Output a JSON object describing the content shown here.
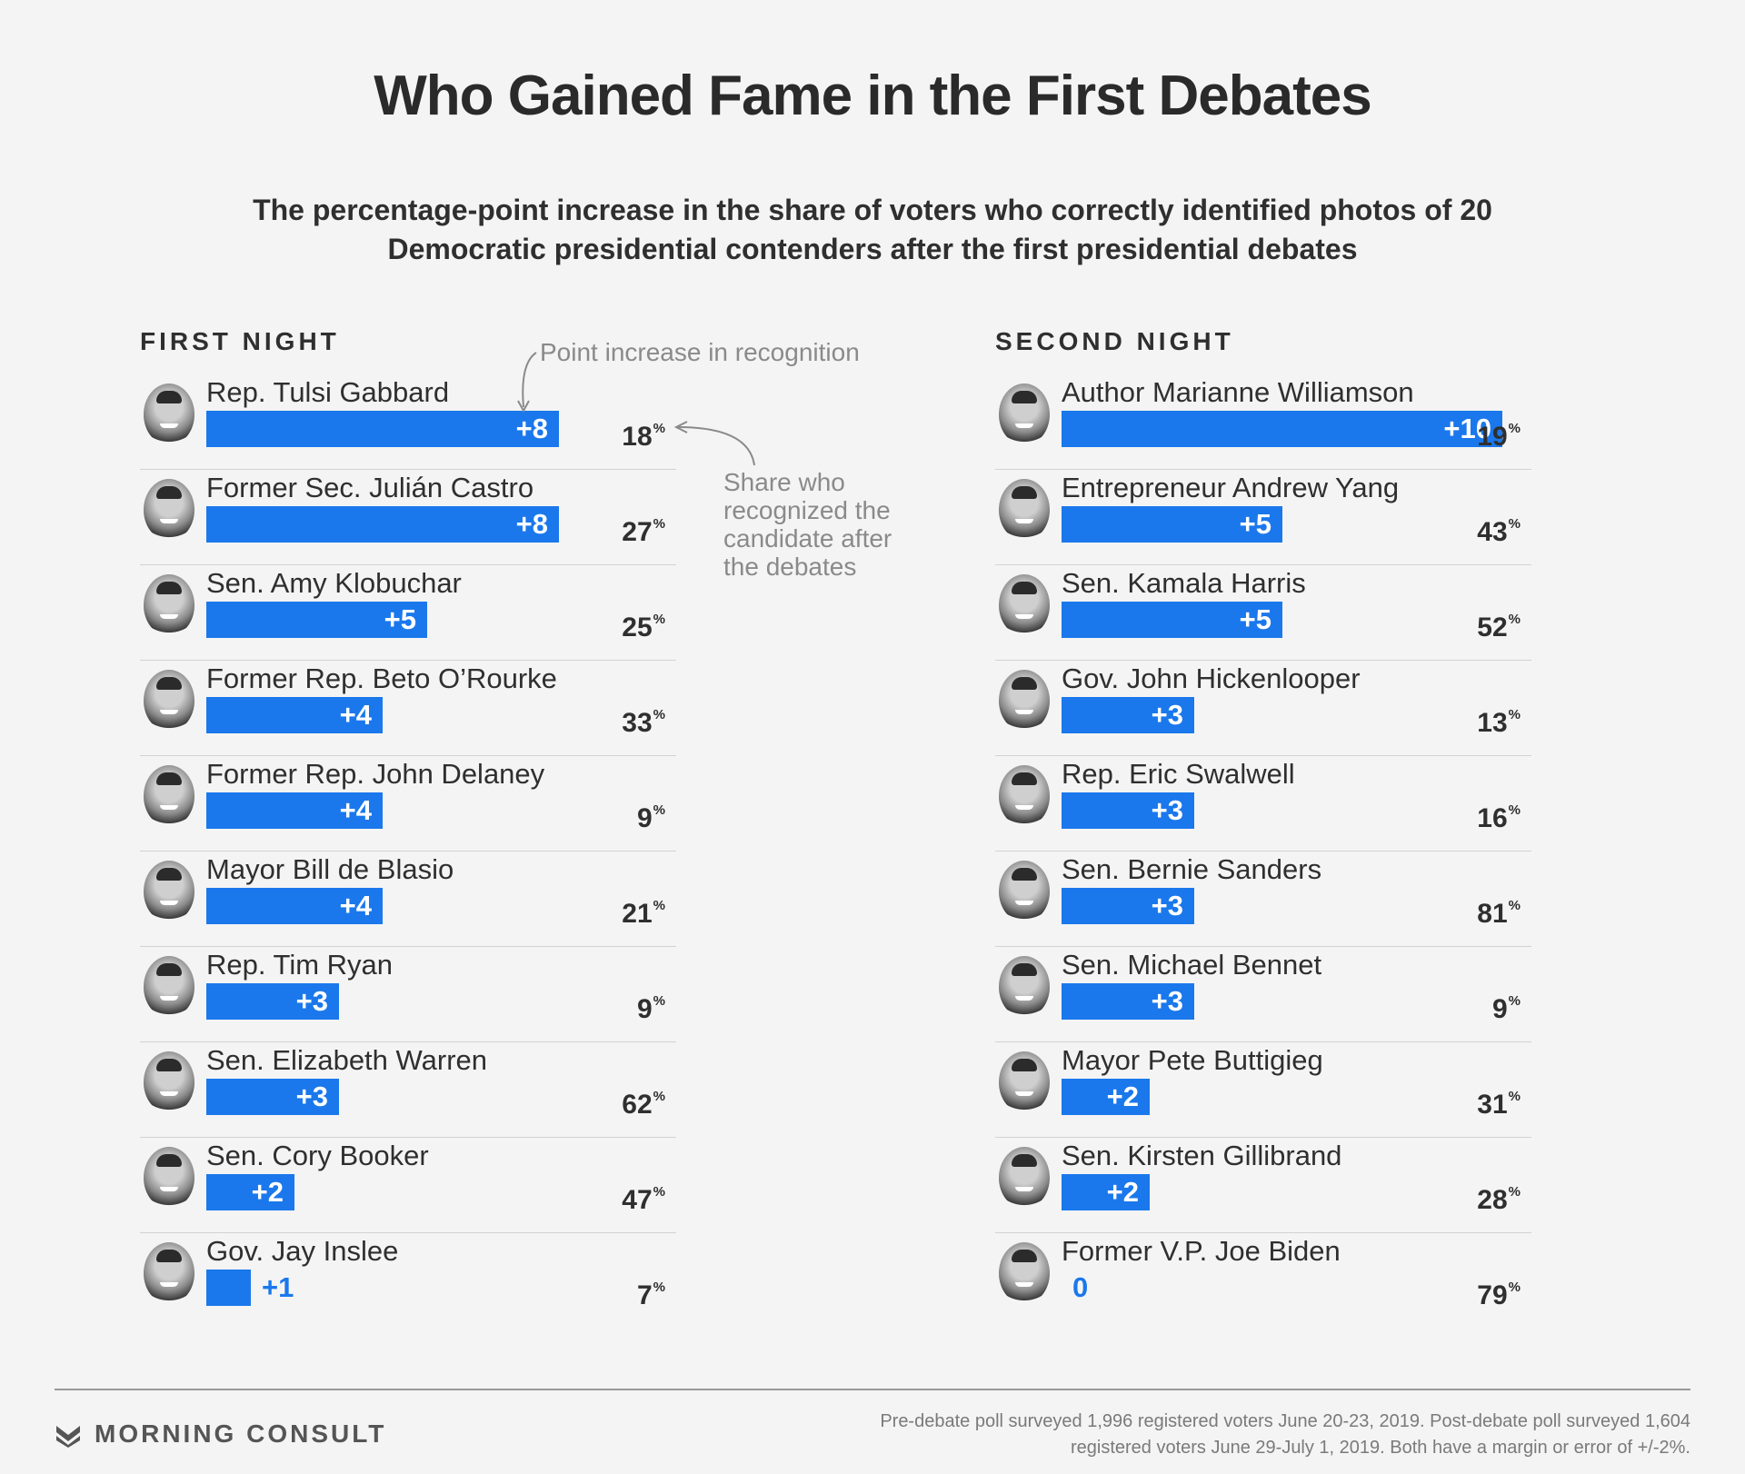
{
  "title": "Who Gained Fame in the First Debates",
  "subtitle": "The percentage-point increase in the share of voters who correctly identified photos of 20 Democratic presidential contenders after the first presidential debates",
  "annotations": {
    "increase": "Point increase in recognition",
    "share": "Share who recognized the candidate after the debates"
  },
  "colors": {
    "bar": "#1a78ec",
    "background": "#f4f4f4",
    "text": "#2f2f2f"
  },
  "logo": {
    "text": "MORNING CONSULT",
    "icon": "morning-consult-logo-icon"
  },
  "footnote": "Pre-debate poll surveyed 1,996 registered voters June 20-23, 2019. Post-debate poll surveyed 1,604 registered voters June 29-July 1, 2019. Both have a margin or error of +/-2%.",
  "chart_data": [
    {
      "type": "bar",
      "title": "FIRST NIGHT",
      "value_max": 10,
      "categories": [
        "Rep. Tulsi Gabbard",
        "Former Sec. Julián Castro",
        "Sen. Amy Klobuchar",
        "Former Rep. Beto O’Rourke",
        "Former Rep. John Delaney",
        "Mayor Bill de Blasio",
        "Rep. Tim Ryan",
        "Sen. Elizabeth Warren",
        "Sen. Cory Booker",
        "Gov. Jay Inslee"
      ],
      "increase_labels": [
        "+8",
        "+8",
        "+5",
        "+4",
        "+4",
        "+4",
        "+3",
        "+3",
        "+2",
        "+1"
      ],
      "values": [
        8,
        8,
        5,
        4,
        4,
        4,
        3,
        3,
        2,
        1
      ],
      "share": [
        18,
        27,
        25,
        33,
        9,
        21,
        9,
        62,
        47,
        7
      ],
      "share_labels": [
        "18",
        "27",
        "25",
        "33",
        "9",
        "21",
        "9",
        "62",
        "47",
        "7"
      ]
    },
    {
      "type": "bar",
      "title": "SECOND NIGHT",
      "value_max": 10,
      "categories": [
        "Author Marianne Williamson",
        "Entrepreneur Andrew Yang",
        "Sen. Kamala Harris",
        "Gov. John Hickenlooper",
        "Rep. Eric Swalwell",
        "Sen. Bernie Sanders",
        "Sen. Michael Bennet",
        "Mayor Pete Buttigieg",
        "Sen. Kirsten Gillibrand",
        "Former V.P. Joe Biden"
      ],
      "increase_labels": [
        "+10",
        "+5",
        "+5",
        "+3",
        "+3",
        "+3",
        "+3",
        "+2",
        "+2",
        "0"
      ],
      "values": [
        10,
        5,
        5,
        3,
        3,
        3,
        3,
        2,
        2,
        0
      ],
      "share": [
        19,
        43,
        52,
        13,
        16,
        81,
        9,
        31,
        28,
        79
      ],
      "share_labels": [
        "19",
        "43",
        "52",
        "13",
        "16",
        "81",
        "9",
        "31",
        "28",
        "79"
      ]
    }
  ]
}
